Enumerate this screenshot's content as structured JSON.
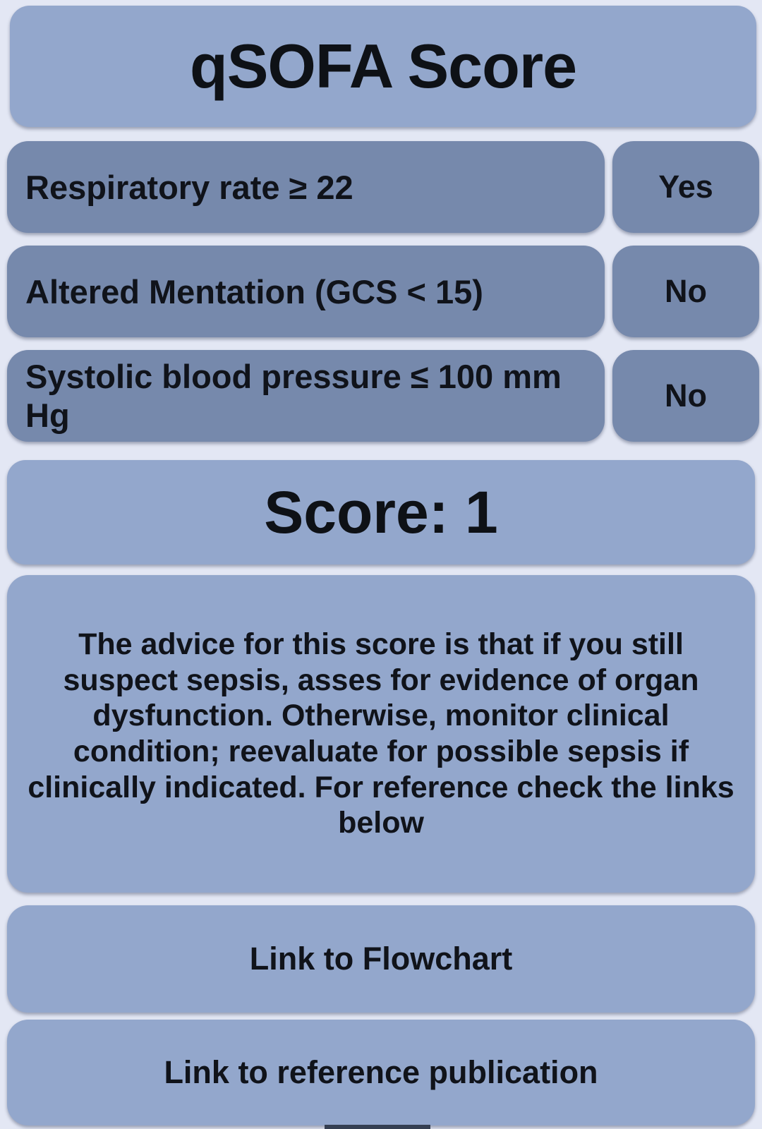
{
  "title": "qSOFA Score",
  "criteria": [
    {
      "label": "Respiratory rate ≥ 22",
      "value": "Yes"
    },
    {
      "label": "Altered Mentation (GCS < 15)",
      "value": "No"
    },
    {
      "label": "Systolic blood pressure ≤ 100 mm Hg",
      "value": "No"
    }
  ],
  "score": {
    "text": "Score: 1"
  },
  "advice": {
    "text": "The advice for this score is that if you still suspect sepsis, asses for evidence of organ dysfunction. Otherwise, monitor clinical condition; reevaluate for possible sepsis if clinically indicated. For reference check the links below"
  },
  "links": {
    "flowchart": "Link to Flowchart",
    "reference": "Link to reference publication"
  },
  "colors": {
    "background": "#e3e7f4",
    "card_light": "#93a7cc",
    "card_dark": "#7689ac",
    "text": "#10131a",
    "nav_handle": "#353f52"
  }
}
